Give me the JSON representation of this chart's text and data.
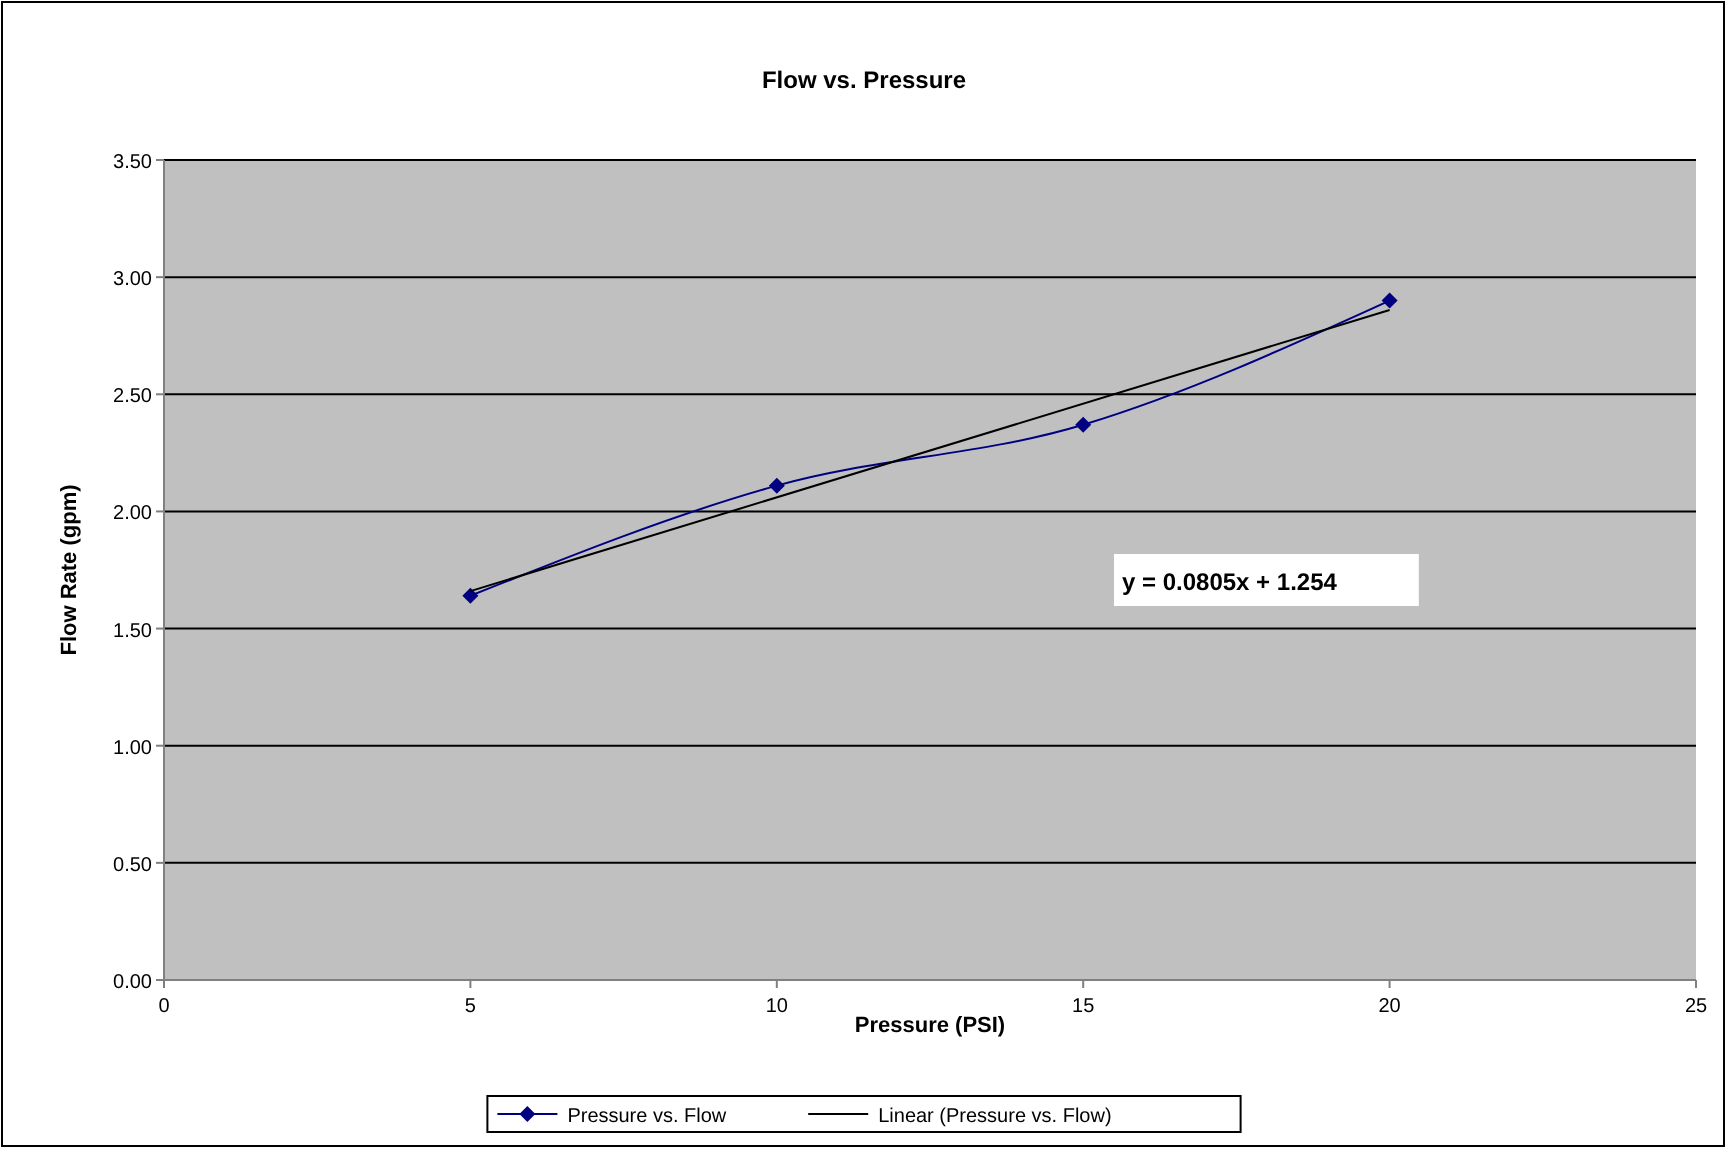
{
  "chart_data": {
    "type": "line",
    "title": "Flow vs. Pressure",
    "xlabel": "Pressure (PSI)",
    "ylabel": "Flow Rate (gpm)",
    "xlim": [
      0,
      25
    ],
    "xticks": [
      0,
      5,
      10,
      15,
      20,
      25
    ],
    "ylim": [
      0,
      3.5
    ],
    "yticks": [
      {
        "value": 0,
        "label": "0.00"
      },
      {
        "value": 0.5,
        "label": "0.50"
      },
      {
        "value": 1,
        "label": "1.00"
      },
      {
        "value": 1.5,
        "label": "1.50"
      },
      {
        "value": 2,
        "label": "2.00"
      },
      {
        "value": 2.5,
        "label": "2.50"
      },
      {
        "value": 3,
        "label": "3.00"
      },
      {
        "value": 3.5,
        "label": "3.50"
      }
    ],
    "grid": "y",
    "legend": "bottom",
    "series": [
      {
        "name": "Pressure vs. Flow",
        "color": "#000080",
        "x": [
          5,
          10,
          15,
          20
        ],
        "values": [
          1.64,
          2.11,
          2.37,
          2.9
        ],
        "marker": "diamond"
      },
      {
        "name": "Linear (Pressure vs. Flow)",
        "color": "#000000",
        "x": [
          5,
          20
        ],
        "values": [
          1.66,
          2.86
        ],
        "marker": "none"
      }
    ],
    "annotations": [
      "y = 0.0805x + 1.254"
    ]
  }
}
